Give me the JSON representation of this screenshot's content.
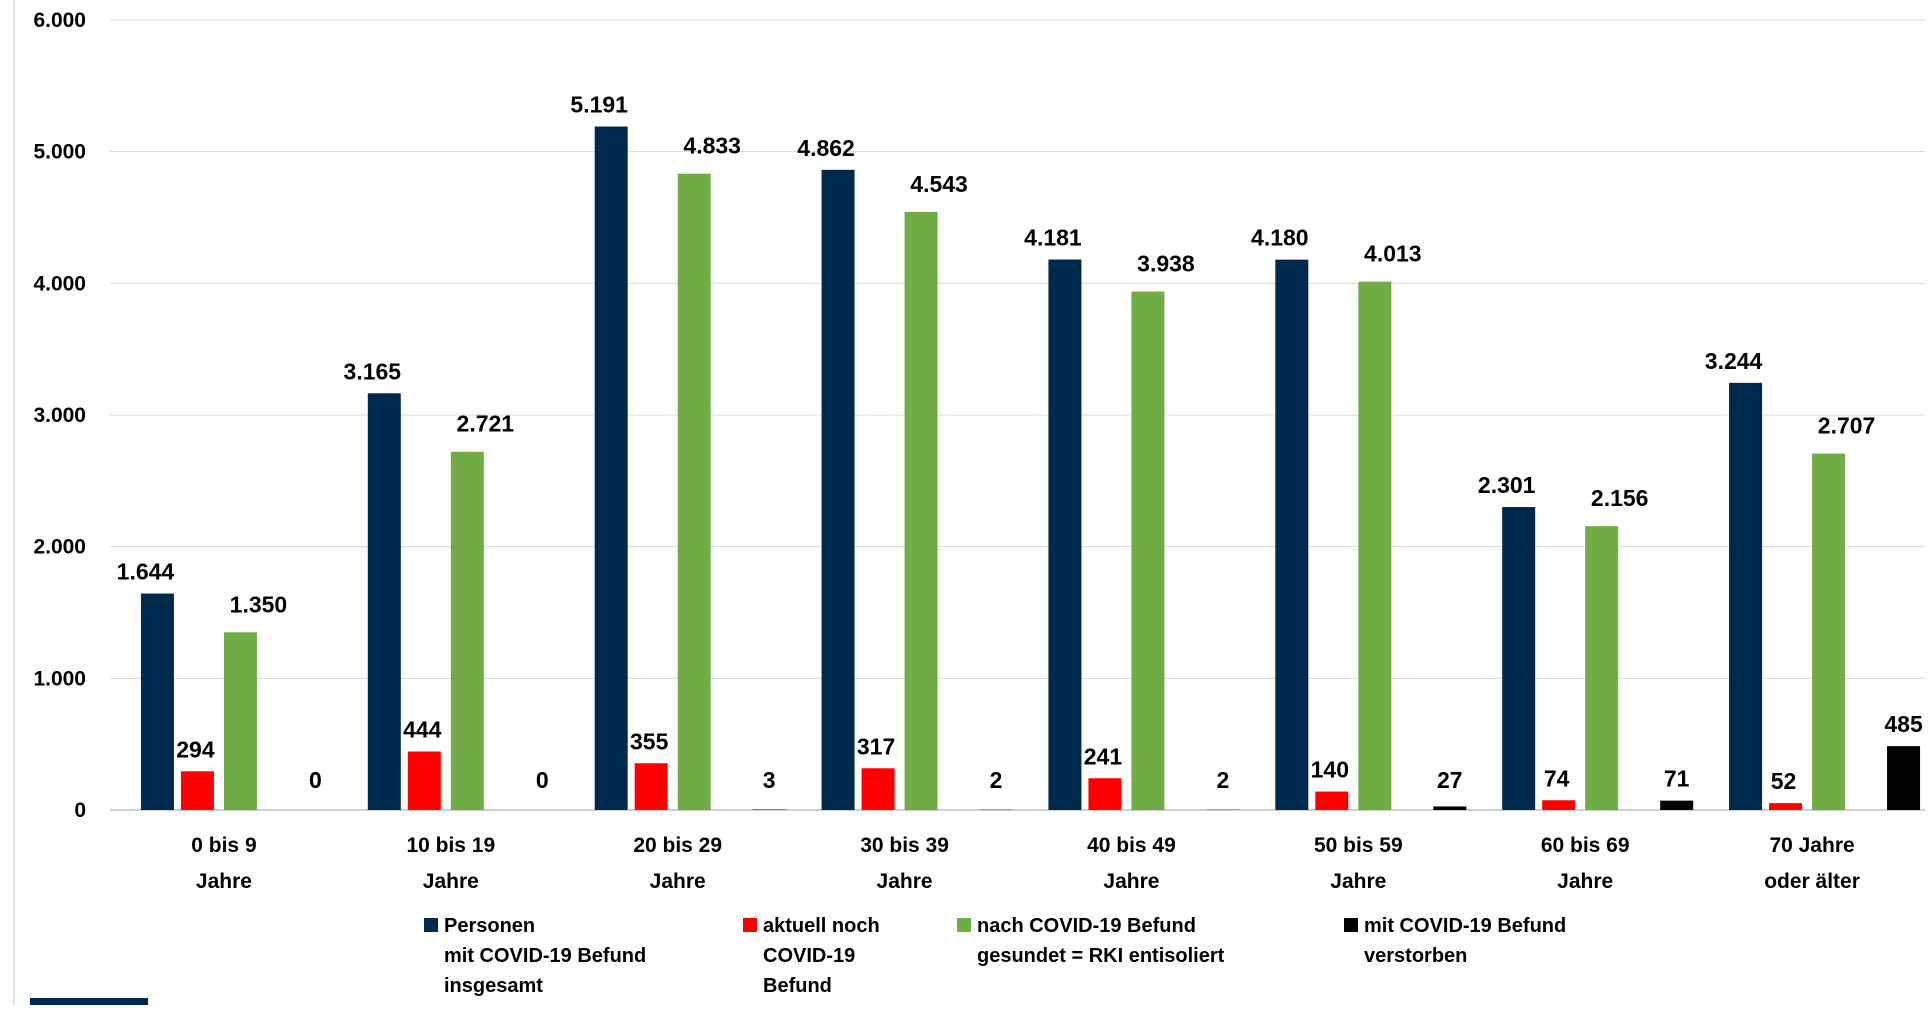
{
  "chart_data": {
    "type": "bar",
    "title": "",
    "xlabel": "",
    "ylabel": "",
    "ylim": [
      0,
      6000
    ],
    "yticks": [
      0,
      1000,
      2000,
      3000,
      4000,
      5000,
      6000
    ],
    "ytick_labels": [
      "0",
      "1.000",
      "2.000",
      "3.000",
      "4.000",
      "5.000",
      "6.000"
    ],
    "grid": true,
    "legend_position": "bottom",
    "categories": [
      [
        "0 bis 9",
        "Jahre"
      ],
      [
        "10 bis 19",
        "Jahre"
      ],
      [
        "20 bis 29",
        "Jahre"
      ],
      [
        "30 bis 39",
        "Jahre"
      ],
      [
        "40 bis 49",
        "Jahre"
      ],
      [
        "50 bis 59",
        "Jahre"
      ],
      [
        "60 bis 69",
        "Jahre"
      ],
      [
        "70 Jahre",
        "oder älter"
      ]
    ],
    "series": [
      {
        "legend_lines": [
          "Personen",
          "mit COVID-19 Befund",
          "insgesamt"
        ],
        "color": "#002A4D",
        "values": [
          1644,
          3165,
          5191,
          4862,
          4181,
          4180,
          2301,
          3244
        ],
        "labels": [
          "1.644",
          "3.165",
          "5.191",
          "4.862",
          "4.181",
          "4.180",
          "2.301",
          "3.244"
        ]
      },
      {
        "legend_lines": [
          "aktuell noch",
          "COVID-19",
          "Befund"
        ],
        "color": "#FF0000",
        "values": [
          294,
          444,
          355,
          317,
          241,
          140,
          74,
          52
        ],
        "labels": [
          "294",
          "444",
          "355",
          "317",
          "241",
          "140",
          "74",
          "52"
        ]
      },
      {
        "legend_lines": [
          "nach COVID-19 Befund",
          "gesundet = RKI entisoliert"
        ],
        "color": "#70AD47",
        "values": [
          1350,
          2721,
          4833,
          4543,
          3938,
          4013,
          2156,
          2707
        ],
        "labels": [
          "1.350",
          "2.721",
          "4.833",
          "4.543",
          "3.938",
          "4.013",
          "2.156",
          "2.707"
        ]
      },
      {
        "legend_lines": [
          "mit COVID-19 Befund",
          "verstorben"
        ],
        "color": "#000000",
        "values": [
          0,
          0,
          3,
          2,
          2,
          27,
          71,
          485
        ],
        "labels": [
          "0",
          "0",
          "3",
          "2",
          "2",
          "27",
          "71",
          "485"
        ]
      }
    ],
    "accent_color": "#002A4D"
  }
}
